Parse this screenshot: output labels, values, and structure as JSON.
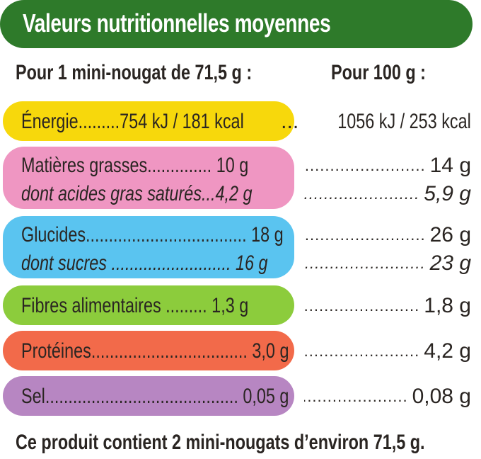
{
  "header": {
    "title": "Valeurs nutritionnelles moyennes"
  },
  "columns": {
    "per_portion": "Pour 1 mini-nougat de 71,5 g :",
    "per_100": "Pour 100 g :"
  },
  "colors": {
    "header": "#2e7a2a",
    "energie": "#f7d80c",
    "matieres": "#ef96c2",
    "glucides": "#5ac4f0",
    "fibres": "#8ccc3c",
    "proteines": "#f26a4a",
    "sel": "#b786c2"
  },
  "rows": {
    "energie": {
      "label": "Énergie",
      "portion": "754 kJ / 181 kcal",
      "per100": "1056 kJ / 253 kcal"
    },
    "matieres": {
      "label": "Matières grasses",
      "portion": "10 g",
      "per100": "14 g"
    },
    "satures": {
      "label": "dont acides gras saturés",
      "portion": "4,2 g",
      "per100": "5,9 g"
    },
    "glucides": {
      "label": "Glucides",
      "portion": "18 g",
      "per100": "26 g"
    },
    "sucres": {
      "label": "dont sucres",
      "portion": "16 g",
      "per100": "23 g"
    },
    "fibres": {
      "label": "Fibres alimentaires",
      "portion": "1,3 g",
      "per100": "1,8 g"
    },
    "proteines": {
      "label": "Protéines",
      "portion": "3,0 g",
      "per100": "4,2 g"
    },
    "sel": {
      "label": "Sel",
      "portion": "0,05 g",
      "per100": "0,08 g"
    }
  },
  "footer": {
    "text": "Ce produit contient 2 mini-nougats d’environ  71,5 g."
  }
}
